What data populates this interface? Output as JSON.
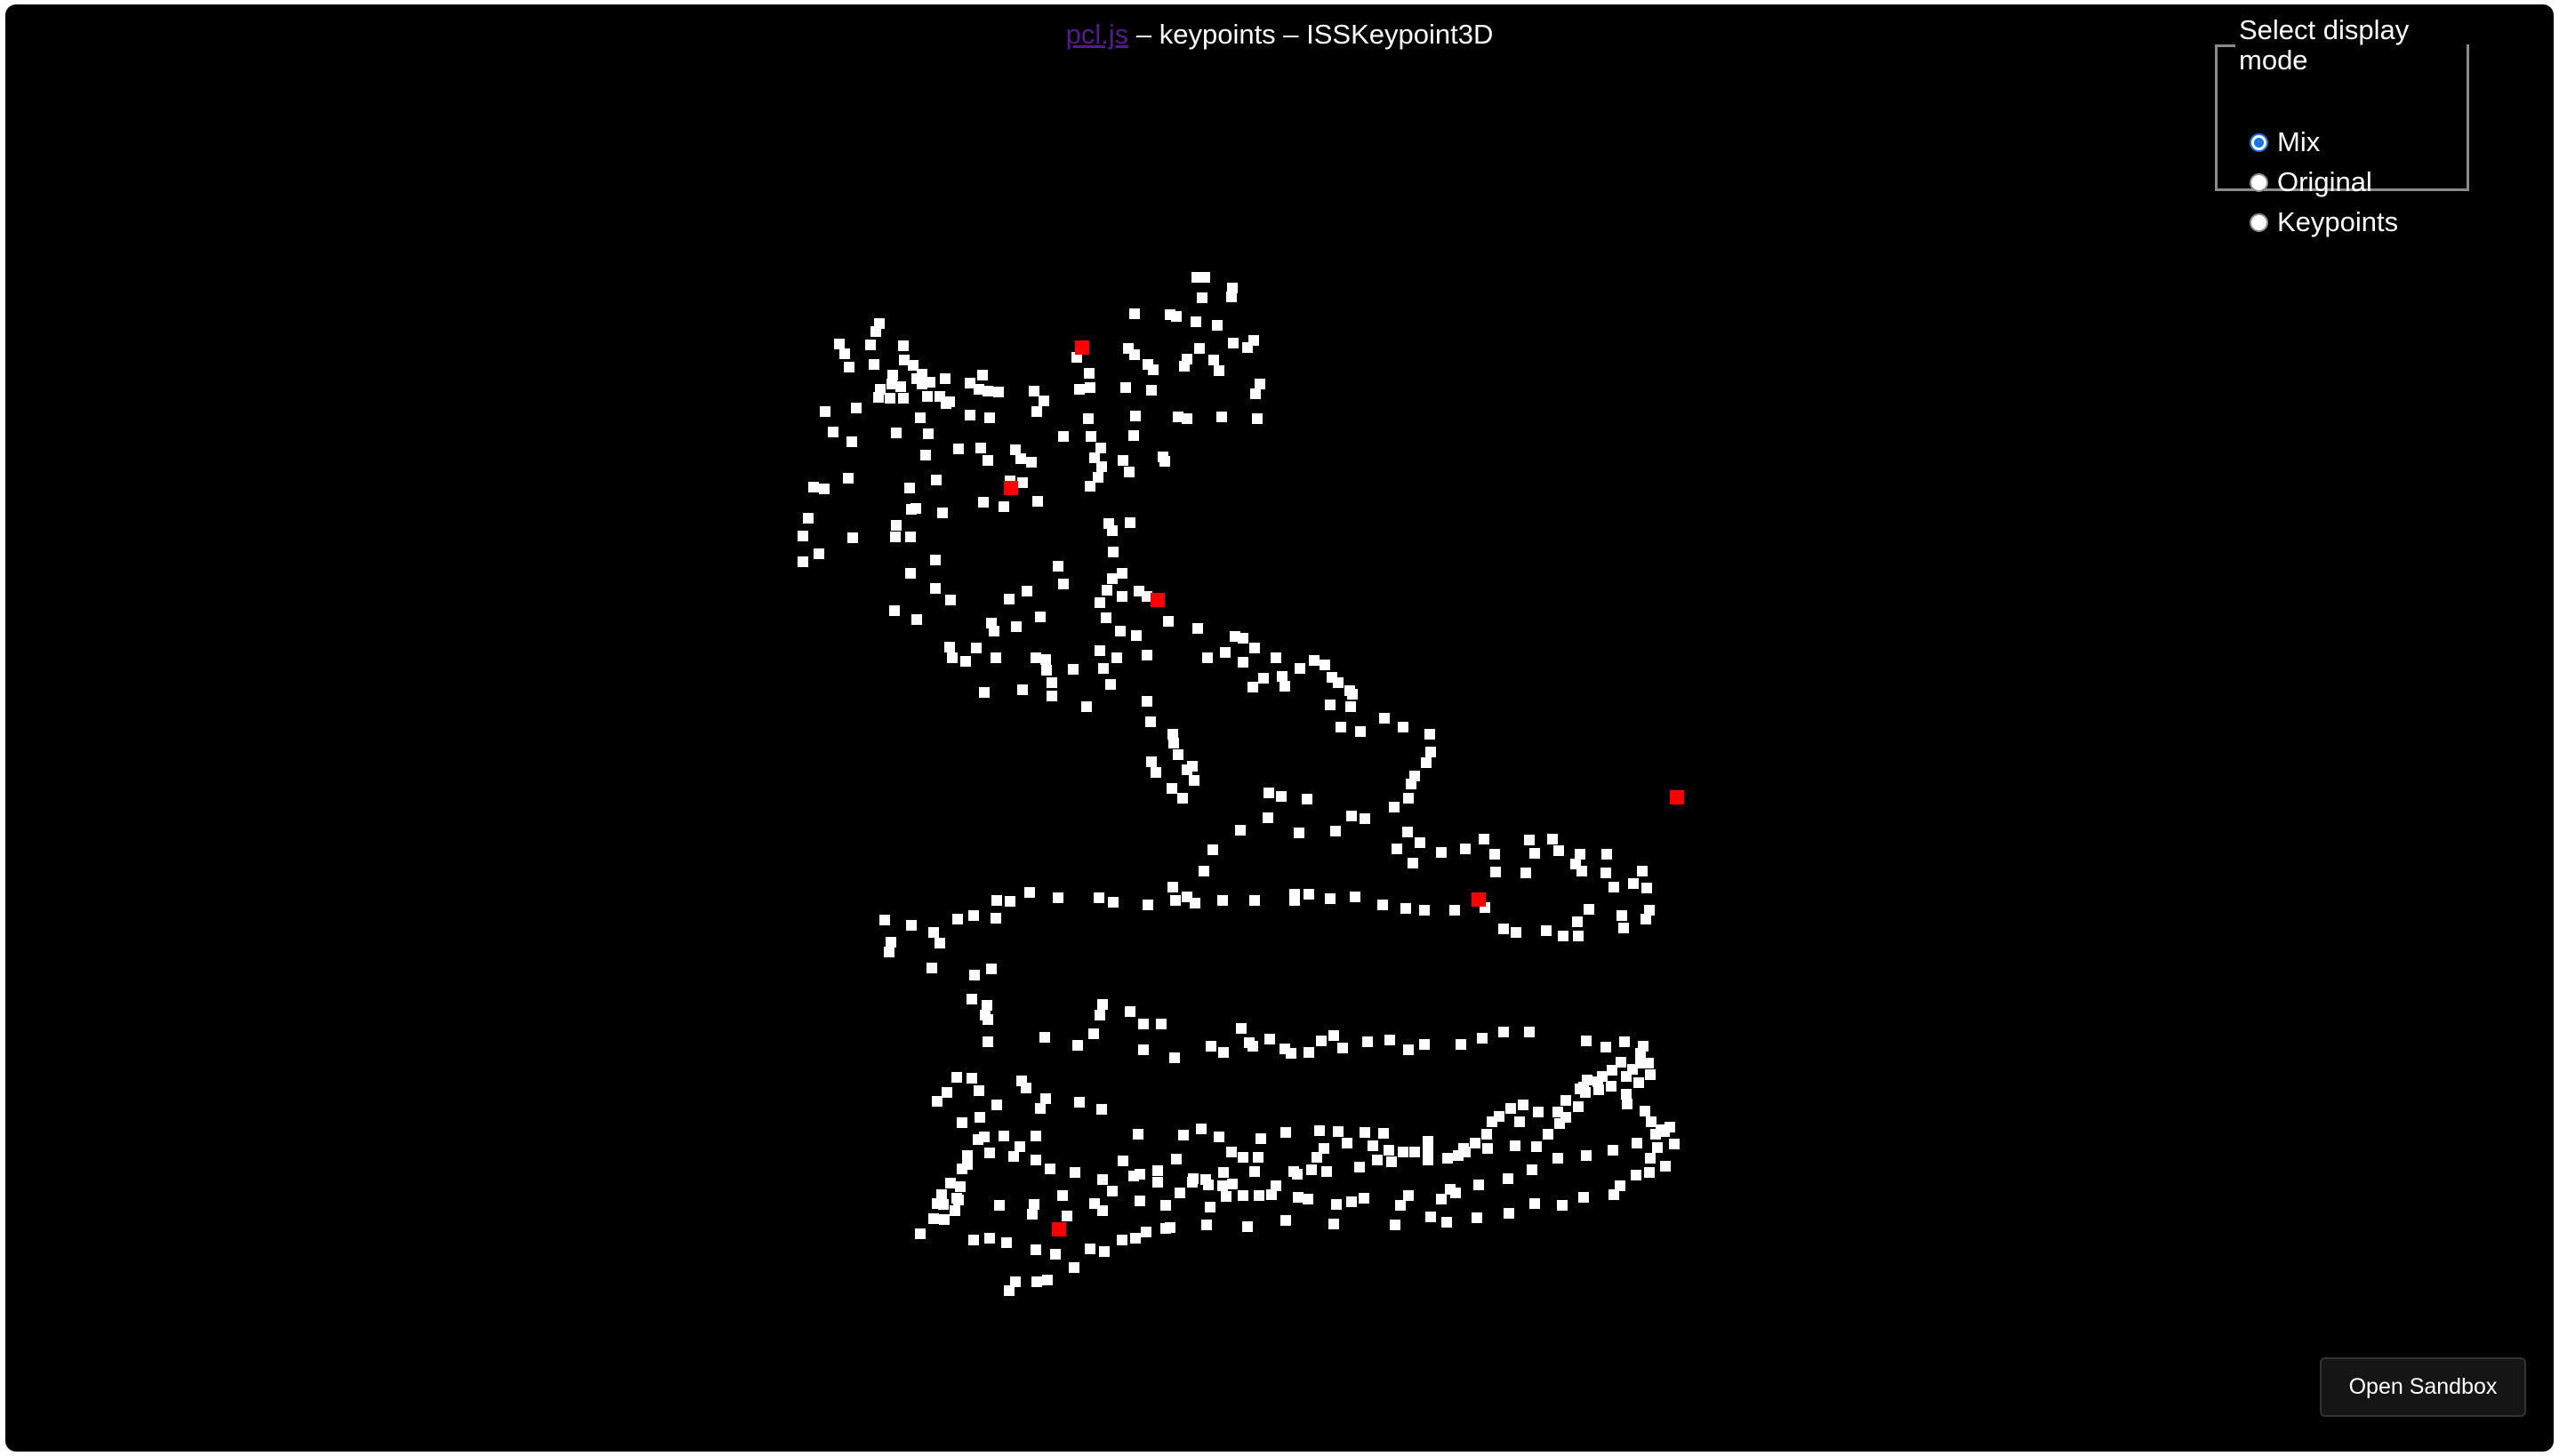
{
  "header": {
    "link_label": "pcl.js",
    "title_rest": " – keypoints – ISSKeypoint3D"
  },
  "display_mode": {
    "legend": "Select display mode",
    "options": [
      {
        "label": "Mix",
        "checked": true
      },
      {
        "label": "Original",
        "checked": false
      },
      {
        "label": "Keypoints",
        "checked": false
      }
    ]
  },
  "viewer": {
    "point_color": "#ffffff",
    "keypoint_color": "#ff0000",
    "background_color": "#000000"
  },
  "sandbox": {
    "label": "Open Sandbox"
  }
}
